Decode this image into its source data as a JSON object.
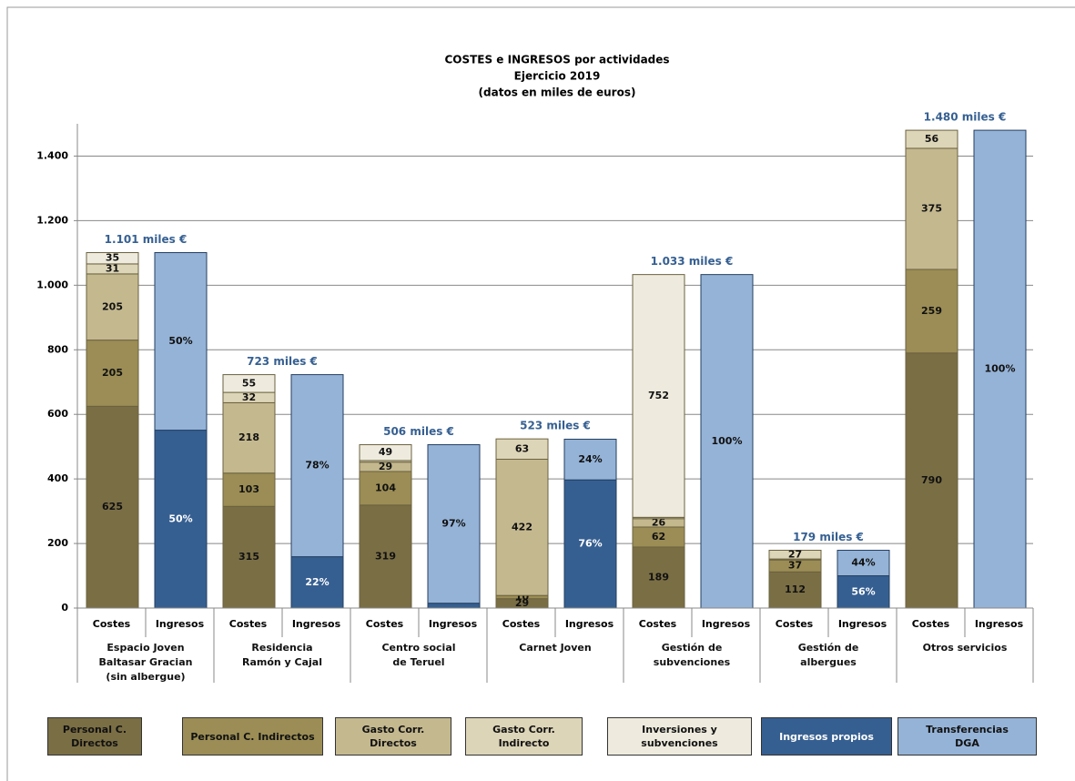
{
  "chart_data": {
    "type": "bar",
    "title": "COSTES e INGRESOS por actividades",
    "subtitle": [
      "Ejercicio 2019",
      "(datos en miles de euros)"
    ],
    "categories": [
      "Espacio Joven\nBaltasar Gracian\n(sin albergue)",
      "Residencia\nRamón y Cajal",
      "Centro social\nde Teruel",
      "Carnet Joven",
      "Gestión de\nsubvenciones",
      "Gestión de\nalbergues",
      "Otros servicios"
    ],
    "sub_categories": [
      "Costes",
      "Ingresos"
    ],
    "costes_series": [
      {
        "name": "Personal C.\nDirectos",
        "color": "#7a6e45",
        "values": [
          625,
          315,
          319,
          29,
          189,
          112,
          790
        ]
      },
      {
        "name": "Personal C. Indirectos",
        "color": "#9b8d55",
        "values": [
          205,
          103,
          104,
          10,
          62,
          37,
          259
        ]
      },
      {
        "name": "Gasto Corr.\nDirectos",
        "color": "#c4b88f",
        "values": [
          205,
          218,
          29,
          422,
          26,
          3,
          375
        ]
      },
      {
        "name": "Gasto Corr.\nIndirecto",
        "color": "#ddd5b8",
        "values": [
          31,
          32,
          5,
          63,
          4,
          27,
          56
        ]
      },
      {
        "name": "Inversiones y\nsubvenciones",
        "color": "#eeebde",
        "values": [
          35,
          55,
          49,
          0,
          752,
          0,
          0
        ]
      }
    ],
    "ingresos_series": [
      {
        "name": "Ingresos propios",
        "color": "#365f91",
        "values": [
          551,
          159,
          15,
          397,
          0,
          100,
          0
        ],
        "percent_labels": [
          "50%",
          "22%",
          null,
          "76%",
          null,
          "56%",
          null
        ]
      },
      {
        "name": "Transferencias\nDGA",
        "color": "#95b3d7",
        "values": [
          550,
          564,
          491,
          126,
          1033,
          79,
          1480
        ],
        "percent_labels": [
          "50%",
          "78%",
          "97%",
          "24%",
          "100%",
          "44%",
          "100%"
        ]
      }
    ],
    "total_labels": [
      "1.101 miles €",
      "723 miles €",
      "506 miles €",
      "523 miles €",
      "1.033 miles €",
      "179 miles €",
      "1.480 miles €"
    ],
    "ylim": [
      0,
      1500
    ],
    "yticks": [
      0,
      200,
      400,
      600,
      800,
      {
        "value": 1000,
        "label": "1.000"
      },
      {
        "value": 1200,
        "label": "1.200"
      },
      {
        "value": 1400,
        "label": "1.400"
      }
    ],
    "grid": true
  }
}
